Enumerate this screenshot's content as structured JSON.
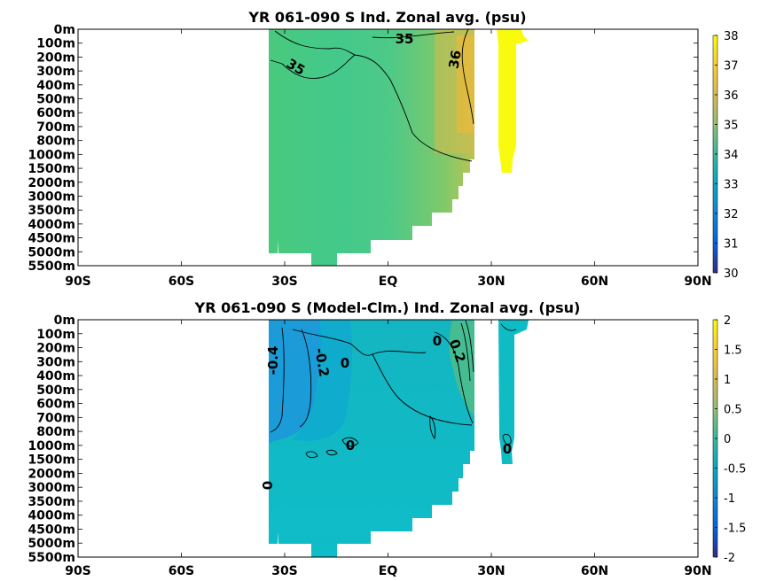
{
  "chart_data": [
    {
      "type": "heatmap",
      "title": "YR 061-090 S Ind. Zonal avg. (psu)",
      "x_ticks": [
        "90S",
        "60S",
        "30S",
        "EQ",
        "30N",
        "60N",
        "90N"
      ],
      "x_values": [
        -90,
        -60,
        -30,
        0,
        30,
        60,
        90
      ],
      "y_ticks": [
        "0m",
        "100m",
        "200m",
        "300m",
        "400m",
        "500m",
        "600m",
        "700m",
        "800m",
        "1000m",
        "1500m",
        "2000m",
        "3000m",
        "3500m",
        "4000m",
        "4500m",
        "5000m",
        "5500m"
      ],
      "colorbar": {
        "ticks": [
          "38",
          "37",
          "36",
          "35",
          "34",
          "33",
          "32",
          "31",
          "30"
        ],
        "range": [
          30,
          38
        ]
      },
      "contour_labels": [
        "35",
        "35",
        "36"
      ],
      "colormap": "parula"
    },
    {
      "type": "heatmap",
      "title": "YR 061-090 S (Model-Clm.) Ind. Zonal avg. (psu)",
      "x_ticks": [
        "90S",
        "60S",
        "30S",
        "EQ",
        "30N",
        "60N",
        "90N"
      ],
      "x_values": [
        -90,
        -60,
        -30,
        0,
        30,
        60,
        90
      ],
      "y_ticks": [
        "0m",
        "100m",
        "200m",
        "300m",
        "400m",
        "500m",
        "600m",
        "700m",
        "800m",
        "1000m",
        "1500m",
        "2000m",
        "3000m",
        "3500m",
        "4000m",
        "4500m",
        "5000m",
        "5500m"
      ],
      "colorbar": {
        "ticks": [
          "2",
          "1.5",
          "1",
          "0.5",
          "0",
          "-0.5",
          "-1",
          "-1.5",
          "-2"
        ],
        "range": [
          -2,
          2
        ]
      },
      "contour_labels": [
        "-0.4",
        "-0.2",
        "0",
        "0",
        "0.2",
        "0",
        "0",
        "0"
      ],
      "colormap": "parula"
    }
  ]
}
